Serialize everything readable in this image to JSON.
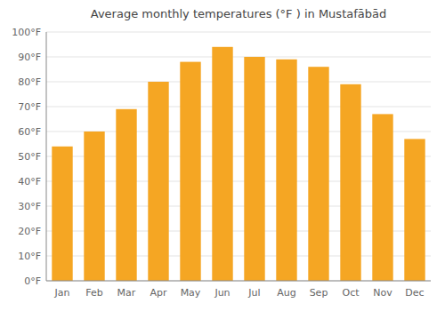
{
  "chart_data": {
    "type": "bar",
    "title": "Average monthly temperatures (°F ) in Mustafābād",
    "categories": [
      "Jan",
      "Feb",
      "Mar",
      "Apr",
      "May",
      "Jun",
      "Jul",
      "Aug",
      "Sep",
      "Oct",
      "Nov",
      "Dec"
    ],
    "values": [
      54,
      60,
      69,
      80,
      88,
      94,
      90,
      89,
      86,
      79,
      67,
      57
    ],
    "color": "#F5A623",
    "ylim": [
      0,
      100
    ],
    "yticks": [
      {
        "value": 0,
        "label": "0°F"
      },
      {
        "value": 10,
        "label": "10°F"
      },
      {
        "value": 20,
        "label": "20°F"
      },
      {
        "value": 30,
        "label": "30°F"
      },
      {
        "value": 40,
        "label": "40°F"
      },
      {
        "value": 50,
        "label": "50°F"
      },
      {
        "value": 60,
        "label": "60°F"
      },
      {
        "value": 70,
        "label": "70°F"
      },
      {
        "value": 80,
        "label": "80°F"
      },
      {
        "value": 90,
        "label": "90°F"
      },
      {
        "value": 100,
        "label": "100°F"
      }
    ],
    "grid": true
  }
}
